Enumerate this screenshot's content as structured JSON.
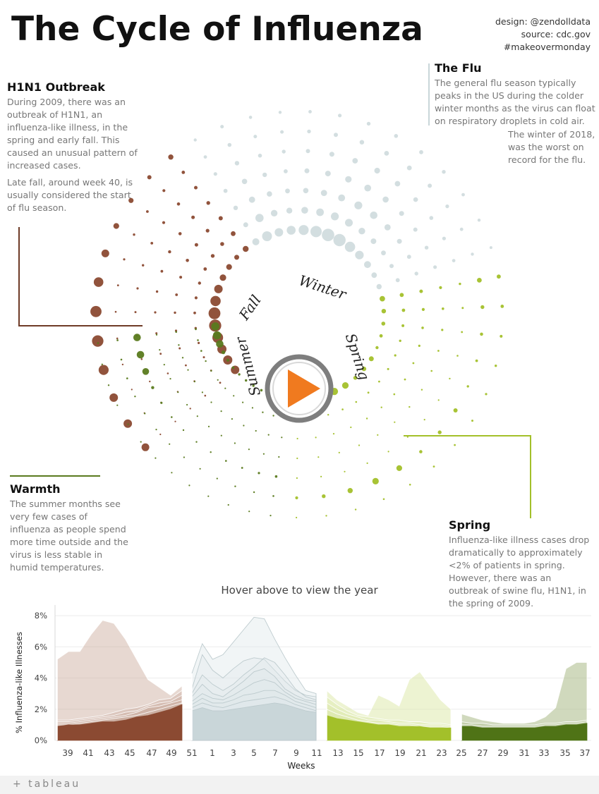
{
  "title": "The Cycle of Influenza",
  "credits": [
    "design: @zendolldata",
    "source: cdc.gov",
    "#makeovermonday"
  ],
  "notes": {
    "h1n1": {
      "heading": "H1N1 Outbreak",
      "paragraphs": [
        "During 2009, there was an outbreak of H1N1, an influenza-like illness, in the spring and early fall. This caused an unusual pattern of increased cases.",
        "Late fall, around week 40, is usually considered the start of flu season."
      ]
    },
    "the_flu": {
      "heading": "The Flu",
      "paragraph": "The general flu season typically peaks in the US during the colder winter months as the virus can float on respiratory droplets in cold air.",
      "paragraph2": "The winter of 2018, was the worst on record for the flu."
    },
    "warmth": {
      "heading": "Warmth",
      "paragraph": "The summer months see very few cases of influenza as people spend more time outside and the virus is less stable in humid temperatures."
    },
    "spring": {
      "heading": "Spring",
      "paragraph": "Influenza-like illness cases drop dramatically to approximately <2% of patients in spring. However, there was an outbreak of swine flu, H1N1, in the spring of 2009."
    }
  },
  "season_labels": {
    "fall": "Fall",
    "winter": "Winter",
    "spring": "Spring",
    "summer": "Summer"
  },
  "colors": {
    "fall": "#8b4a32",
    "winter": "#c9d6d9",
    "spring": "#a3c02a",
    "summer": "#5a7a1e",
    "play": "#f07a1f"
  },
  "hover_caption": "Hover above to view the year",
  "footer_logo": "+ tableau",
  "chart_data": {
    "type": "area",
    "title": "",
    "xlabel": "Weeks",
    "ylabel": "% Influenza-like Illnesses",
    "ylim": [
      0,
      8.5
    ],
    "y_ticks": [
      "0%",
      "2%",
      "4%",
      "6%",
      "8%"
    ],
    "x_ticks": [
      "39",
      "41",
      "43",
      "45",
      "47",
      "49",
      "51",
      "1",
      "3",
      "5",
      "7",
      "9",
      "11",
      "13",
      "15",
      "17",
      "19",
      "21",
      "23",
      "25",
      "27",
      "29",
      "31",
      "33",
      "35",
      "37"
    ],
    "panels": [
      {
        "season": "fall",
        "weeks": [
          39,
          40,
          41,
          42,
          43,
          44,
          45,
          46,
          47,
          48,
          49,
          50
        ],
        "series": [
          {
            "values": [
              5.2,
              5.7,
              5.7,
              6.8,
              7.7,
              7.5,
              6.5,
              5.2,
              3.9,
              3.4,
              2.9,
              3.5
            ]
          },
          {
            "values": [
              1.3,
              1.3,
              1.4,
              1.5,
              1.6,
              1.8,
              2.0,
              2.1,
              2.3,
              2.6,
              2.7,
              3.2
            ]
          },
          {
            "values": [
              1.2,
              1.2,
              1.3,
              1.4,
              1.5,
              1.6,
              1.8,
              1.9,
              2.2,
              2.4,
              2.5,
              2.9
            ]
          },
          {
            "values": [
              1.1,
              1.1,
              1.2,
              1.3,
              1.4,
              1.5,
              1.6,
              1.8,
              2.1,
              2.2,
              2.4,
              2.6
            ]
          },
          {
            "values": [
              1.0,
              1.0,
              1.1,
              1.2,
              1.3,
              1.4,
              1.5,
              1.6,
              1.8,
              2.0,
              2.2,
              2.4
            ]
          },
          {
            "values": [
              0.9,
              1.0,
              1.0,
              1.1,
              1.2,
              1.2,
              1.3,
              1.5,
              1.6,
              1.8,
              2.0,
              2.3
            ]
          }
        ]
      },
      {
        "season": "winter",
        "weeks": [
          51,
          52,
          1,
          2,
          3,
          4,
          5,
          6,
          7,
          8,
          9,
          10,
          11
        ],
        "series": [
          {
            "values": [
              4.3,
              6.2,
              5.2,
              5.5,
              6.3,
              7.1,
              7.9,
              7.8,
              6.5,
              5.3,
              4.2,
              3.2,
              3.0
            ]
          },
          {
            "values": [
              3.3,
              5.5,
              4.5,
              4.0,
              4.6,
              5.1,
              5.3,
              5.2,
              4.5,
              3.8,
              3.2,
              2.9,
              2.8
            ]
          },
          {
            "values": [
              3.0,
              4.2,
              3.6,
              3.2,
              3.6,
              4.2,
              4.7,
              5.3,
              5.0,
              4.2,
              3.3,
              2.8,
              2.6
            ]
          },
          {
            "values": [
              2.8,
              3.6,
              3.0,
              2.8,
              3.3,
              3.8,
              4.4,
              4.6,
              4.1,
              3.3,
              2.9,
              2.6,
              2.5
            ]
          },
          {
            "values": [
              2.5,
              3.0,
              2.7,
              2.6,
              2.9,
              3.3,
              3.7,
              3.9,
              3.7,
              3.1,
              2.7,
              2.5,
              2.3
            ]
          },
          {
            "values": [
              2.3,
              2.7,
              2.4,
              2.4,
              2.6,
              2.9,
              3.0,
              3.2,
              3.2,
              2.9,
              2.5,
              2.3,
              2.1
            ]
          },
          {
            "values": [
              2.1,
              2.4,
              2.2,
              2.1,
              2.3,
              2.5,
              2.6,
              2.7,
              2.8,
              2.6,
              2.3,
              2.1,
              1.9
            ]
          },
          {
            "values": [
              1.9,
              2.1,
              1.9,
              1.9,
              2.0,
              2.1,
              2.2,
              2.3,
              2.4,
              2.3,
              2.1,
              1.9,
              1.8
            ]
          }
        ]
      },
      {
        "season": "spring",
        "weeks": [
          12,
          13,
          14,
          15,
          16,
          17,
          18,
          19,
          20,
          21,
          22,
          23,
          24
        ],
        "series": [
          {
            "values": [
              3.2,
              2.6,
              2.2,
              1.8,
              1.6,
              2.9,
              2.6,
              2.2,
              3.9,
              4.4,
              3.5,
              2.6,
              2.0
            ]
          },
          {
            "values": [
              2.8,
              2.3,
              1.9,
              1.6,
              1.5,
              1.4,
              1.3,
              1.3,
              1.2,
              1.2,
              1.1,
              1.1,
              1.0
            ]
          },
          {
            "values": [
              2.4,
              2.0,
              1.7,
              1.5,
              1.3,
              1.3,
              1.2,
              1.1,
              1.1,
              1.0,
              1.0,
              1.0,
              0.9
            ]
          },
          {
            "values": [
              2.0,
              1.7,
              1.5,
              1.3,
              1.2,
              1.1,
              1.1,
              1.0,
              1.0,
              0.9,
              0.9,
              0.9,
              0.8
            ]
          },
          {
            "values": [
              1.6,
              1.4,
              1.3,
              1.2,
              1.1,
              1.0,
              1.0,
              0.9,
              0.9,
              0.9,
              0.8,
              0.8,
              0.8
            ]
          }
        ]
      },
      {
        "season": "summer",
        "weeks": [
          25,
          26,
          27,
          28,
          29,
          30,
          31,
          32,
          33,
          34,
          35,
          36,
          37
        ],
        "series": [
          {
            "values": [
              1.7,
              1.5,
              1.3,
              1.2,
              1.1,
              1.1,
              1.1,
              1.2,
              1.5,
              2.1,
              4.6,
              5.0,
              5.0
            ]
          },
          {
            "values": [
              1.2,
              1.1,
              1.1,
              1.0,
              1.0,
              1.0,
              1.0,
              1.0,
              1.1,
              1.1,
              1.2,
              1.2,
              1.3
            ]
          },
          {
            "values": [
              1.0,
              1.0,
              0.9,
              0.9,
              0.9,
              0.9,
              0.9,
              0.9,
              1.0,
              1.0,
              1.1,
              1.1,
              1.2
            ]
          },
          {
            "values": [
              0.9,
              0.9,
              0.8,
              0.8,
              0.8,
              0.8,
              0.8,
              0.8,
              0.9,
              0.9,
              1.0,
              1.0,
              1.1
            ]
          }
        ]
      }
    ]
  }
}
